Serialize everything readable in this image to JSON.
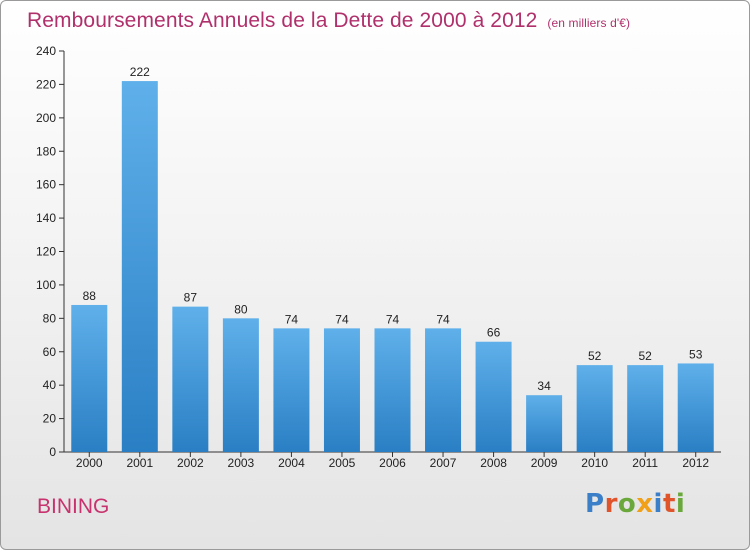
{
  "header": {
    "title": "Remboursements Annuels de la Dette de 2000 à 2012",
    "unit": "(en milliers d'€)"
  },
  "footer": {
    "commune": "BINING",
    "logo_letters": [
      "P",
      "r",
      "o",
      "x",
      "i",
      "t",
      "i"
    ],
    "logo_colors": [
      "#3a7fc8",
      "#e0542c",
      "#6aa83c",
      "#f0a019",
      "#3a7fc8",
      "#e0542c",
      "#6aa83c"
    ]
  },
  "colors": {
    "title": "#b0306b",
    "bar_light": "#5fb0ea",
    "bar_dark": "#2a7fc4"
  },
  "chart_data": {
    "type": "bar",
    "title": "Remboursements Annuels de la Dette de 2000 à 2012",
    "categories": [
      "2000",
      "2001",
      "2002",
      "2003",
      "2004",
      "2005",
      "2006",
      "2007",
      "2008",
      "2009",
      "2010",
      "2011",
      "2012"
    ],
    "values": [
      88,
      222,
      87,
      80,
      74,
      74,
      74,
      74,
      66,
      34,
      52,
      52,
      53
    ],
    "ylim": [
      0,
      240
    ],
    "yticks": [
      0,
      20,
      40,
      60,
      80,
      100,
      120,
      140,
      160,
      180,
      200,
      220,
      240
    ],
    "grid": false,
    "legend": "none"
  }
}
